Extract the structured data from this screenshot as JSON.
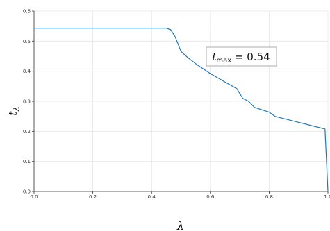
{
  "chart_data": {
    "type": "line",
    "title": "",
    "xlabel": "λ",
    "ylabel_main": "t",
    "ylabel_sub": "λ",
    "xlim": [
      0.0,
      1.0
    ],
    "ylim": [
      0.0,
      0.6
    ],
    "x_ticks": [
      0.0,
      0.2,
      0.4,
      0.6,
      0.8,
      1.0
    ],
    "y_ticks": [
      0.0,
      0.1,
      0.2,
      0.3,
      0.4,
      0.5,
      0.6
    ],
    "x_tick_labels": [
      "0.0",
      "0.2",
      "0.4",
      "0.6",
      "0.8",
      "1.0"
    ],
    "y_tick_labels": [
      "0.0",
      "0.1",
      "0.2",
      "0.3",
      "0.4",
      "0.5",
      "0.6"
    ],
    "grid": true,
    "line_color": "#1f77b4",
    "series": [
      {
        "x": [
          0.0,
          0.45,
          0.465,
          0.48,
          0.5,
          0.52,
          0.55,
          0.6,
          0.65,
          0.69,
          0.71,
          0.73,
          0.75,
          0.8,
          0.82,
          0.9,
          0.99,
          1.0
        ],
        "y": [
          0.543,
          0.543,
          0.538,
          0.515,
          0.466,
          0.448,
          0.425,
          0.392,
          0.364,
          0.342,
          0.31,
          0.3,
          0.28,
          0.264,
          0.25,
          0.23,
          0.208,
          0.0
        ]
      }
    ],
    "annotation": {
      "main": "t",
      "sub": "max",
      "value": " = 0.54"
    }
  }
}
